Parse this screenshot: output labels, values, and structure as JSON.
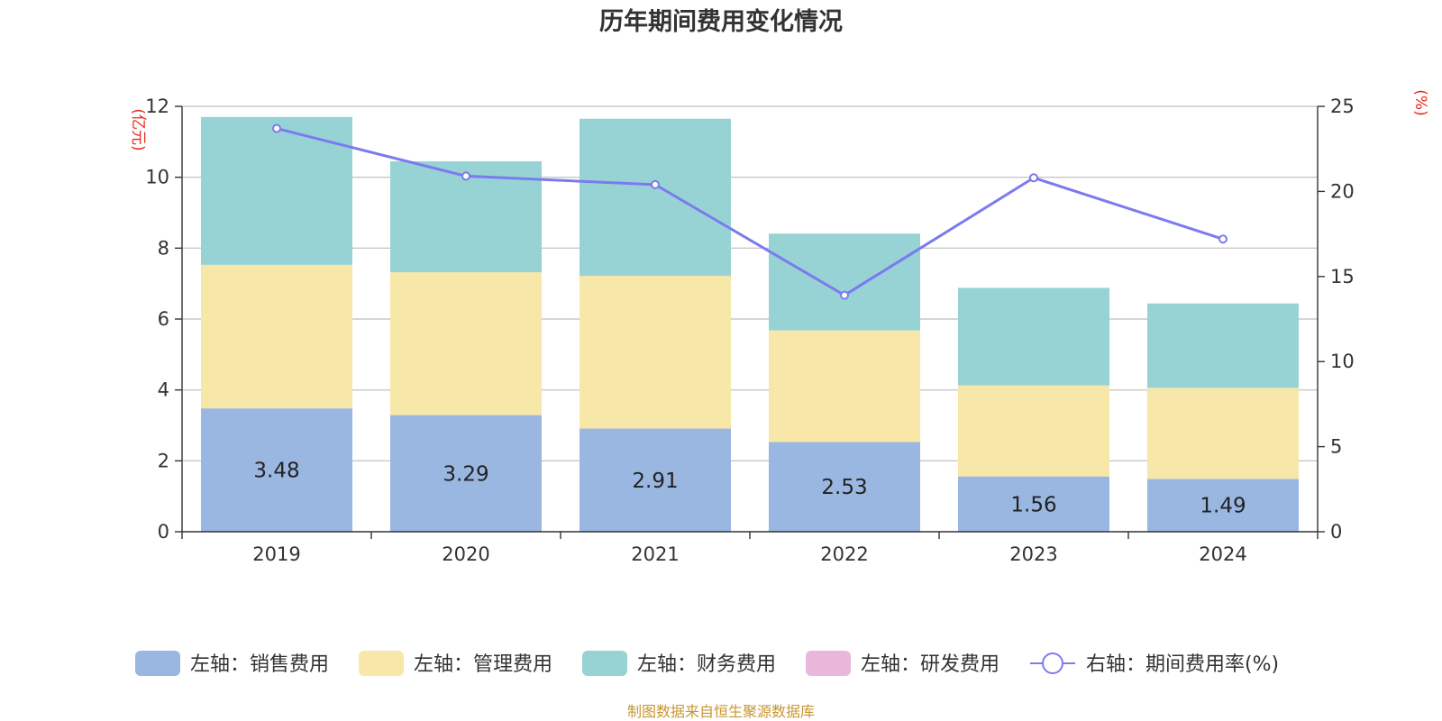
{
  "chart_data": {
    "type": "bar",
    "title": "历年期间费用变化情况",
    "categories": [
      "2019",
      "2020",
      "2021",
      "2022",
      "2023",
      "2024"
    ],
    "left_axis": {
      "unit_label": "(亿元)",
      "ylim": [
        0,
        12
      ],
      "ticks": [
        0,
        2,
        4,
        6,
        8,
        10,
        12
      ]
    },
    "right_axis": {
      "unit_label": "(%)",
      "ylim": [
        0,
        25
      ],
      "ticks": [
        0,
        5,
        10,
        15,
        20,
        25
      ]
    },
    "grid": true,
    "legend_position": "bottom",
    "series": [
      {
        "name": "左轴：销售费用",
        "axis": "left",
        "kind": "bar",
        "color": "#9ab7e2",
        "values": [
          3.48,
          3.29,
          2.91,
          2.53,
          1.56,
          1.49
        ],
        "labels": [
          "3.48",
          "3.29",
          "2.91",
          "2.53",
          "1.56",
          "1.49"
        ]
      },
      {
        "name": "左轴：管理费用",
        "axis": "left",
        "kind": "bar",
        "color": "#f7e7a9",
        "values": [
          4.05,
          4.03,
          4.31,
          3.15,
          2.57,
          2.57
        ]
      },
      {
        "name": "左轴：财务费用",
        "axis": "left",
        "kind": "bar",
        "color": "#97d3d4",
        "values": [
          4.17,
          3.13,
          4.43,
          2.73,
          2.75,
          2.38
        ]
      },
      {
        "name": "左轴：研发费用",
        "axis": "left",
        "kind": "bar",
        "color": "#e8b7d9",
        "values": [
          0,
          0,
          0,
          0,
          0,
          0
        ]
      },
      {
        "name": "右轴：期间费用率(%)",
        "axis": "right",
        "kind": "line",
        "color": "#7b7bef",
        "values": [
          23.7,
          20.9,
          20.4,
          13.9,
          20.8,
          17.2
        ]
      }
    ]
  },
  "source_text": "制图数据来自恒生聚源数据库"
}
